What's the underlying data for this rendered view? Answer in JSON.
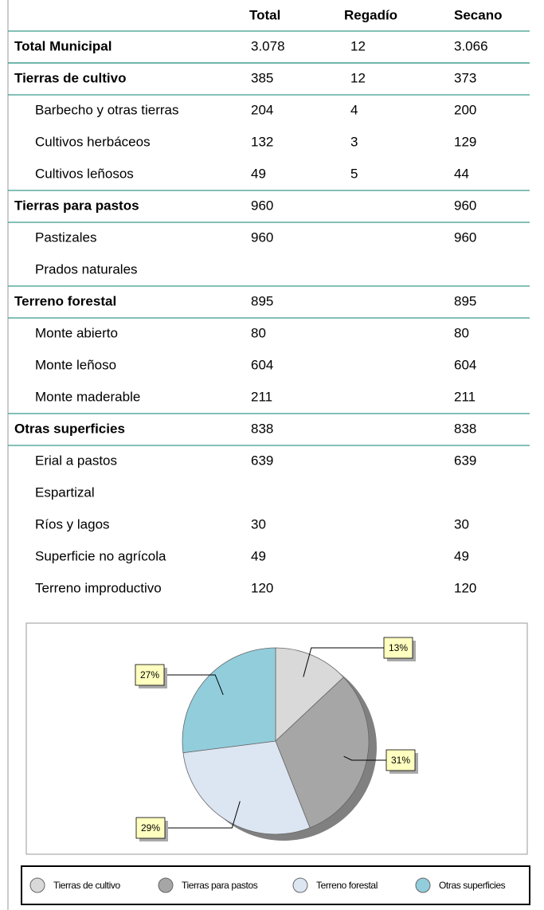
{
  "table": {
    "columns": [
      "Total",
      "Regadío",
      "Secano"
    ],
    "total": [
      "Total Municipal",
      "3.078",
      "12",
      "3.066"
    ],
    "sections": [
      {
        "row": [
          "Tierras de cultivo",
          "385",
          "12",
          "373"
        ],
        "items": [
          [
            "Barbecho y otras tierras",
            "204",
            "4",
            "200"
          ],
          [
            "Cultivos herbáceos",
            "132",
            "3",
            "129"
          ],
          [
            "Cultivos leñosos",
            "49",
            "5",
            "44"
          ]
        ]
      },
      {
        "row": [
          "Tierras para pastos",
          "960",
          null,
          "960"
        ],
        "items": [
          [
            "Pastizales",
            "960",
            null,
            "960"
          ],
          [
            "Prados naturales",
            null,
            null,
            null
          ]
        ]
      },
      {
        "row": [
          "Terreno forestal",
          "895",
          null,
          "895"
        ],
        "items": [
          [
            "Monte abierto",
            "80",
            null,
            "80"
          ],
          [
            "Monte leñoso",
            "604",
            null,
            "604"
          ],
          [
            "Monte maderable",
            "211",
            null,
            "211"
          ]
        ]
      },
      {
        "row": [
          "Otras superficies",
          "838",
          null,
          "838"
        ],
        "items": [
          [
            "Erial a pastos",
            "639",
            null,
            "639"
          ],
          [
            "Espartizal",
            null,
            null,
            null
          ],
          [
            "Ríos y lagos",
            "30",
            null,
            "30"
          ],
          [
            "Superficie no agrícola",
            "49",
            null,
            "49"
          ],
          [
            "Terreno improductivo",
            "120",
            null,
            "120"
          ]
        ]
      }
    ]
  },
  "chart_data": {
    "type": "pie",
    "categories": [
      "Tierras de cultivo",
      "Tierras para pastos",
      "Terreno forestal",
      "Otras superficies"
    ],
    "values": [
      13,
      31,
      29,
      27
    ],
    "value_labels": [
      "13%",
      "31%",
      "29%",
      "27%"
    ],
    "colors": [
      "#d9d9d9",
      "#a6a6a6",
      "#dce6f2",
      "#92cddc"
    ],
    "legend": "bottom"
  }
}
